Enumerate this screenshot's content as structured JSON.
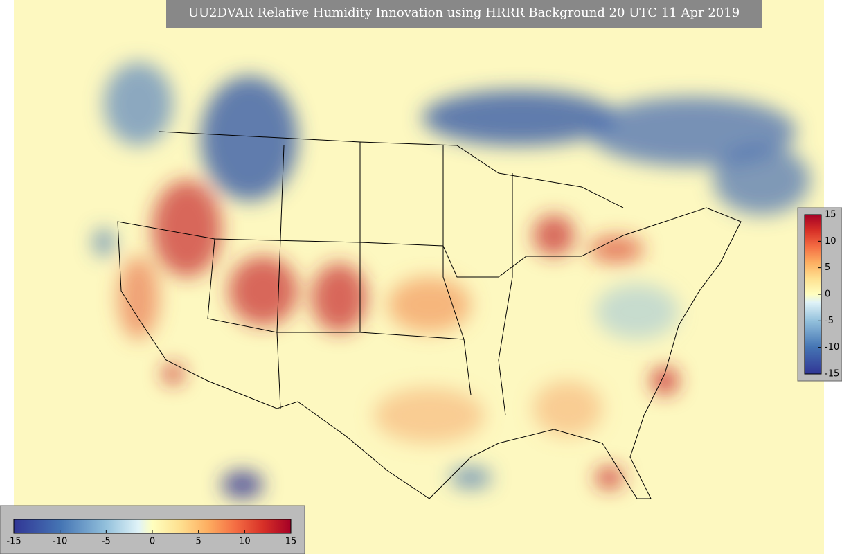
{
  "title": "UU2DVAR Relative Humidity Innovation using HRRR Background 20 UTC 11 Apr 2019",
  "colorbars": [
    {
      "orientation": "vertical",
      "lim": [
        -15,
        15
      ],
      "ticks": [
        15,
        10,
        5,
        0,
        -5,
        -10,
        -15
      ]
    },
    {
      "orientation": "horizontal",
      "lim": [
        -15,
        15
      ],
      "ticks": [
        -15,
        -10,
        -5,
        0,
        5,
        10,
        15
      ]
    }
  ]
}
